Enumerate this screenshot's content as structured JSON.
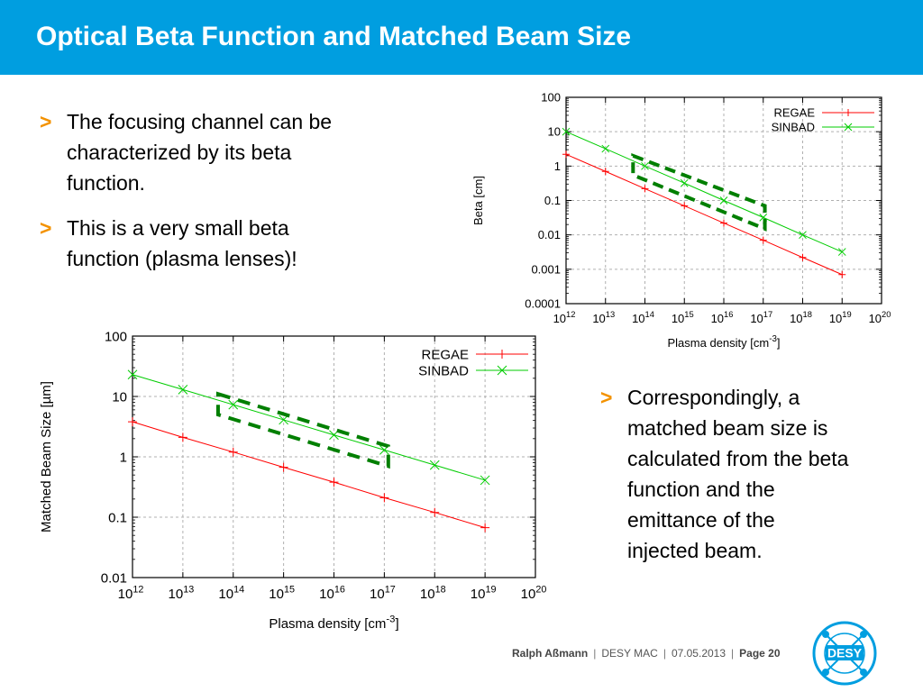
{
  "slide": {
    "title": "Optical Beta Function and Matched Beam Size",
    "bullets_top": [
      {
        "marker": ">",
        "text": "The focusing channel can be\ncharacterized by its beta\nfunction."
      },
      {
        "marker": ">",
        "text": "This is a very small beta\nfunction (plasma lenses)!"
      }
    ],
    "bullet_right": {
      "marker": ">",
      "text": "Correspondingly, a\nmatched beam size is\ncalculated from the beta\nfunction and the\nemittance of the\ninjected beam."
    }
  },
  "footer": {
    "author": "Ralph Aßmann",
    "event": "DESY MAC",
    "date": "07.05.2013",
    "page_label": "Page 20"
  },
  "logo": {
    "text": "DESY"
  },
  "colors": {
    "header": "#009ee0",
    "bullet": "#f39200",
    "regae": "#ff0000",
    "sinbad": "#00cc00",
    "highlight": "#007f00"
  },
  "chart_data": [
    {
      "type": "line",
      "title": "",
      "xlabel": "Plasma density [cm",
      "xlabel_sup": "-3",
      "xlabel_end": "]",
      "ylabel": "Beta [cm]",
      "log_x": true,
      "log_y": true,
      "xlim": [
        1000000000000.0,
        1e+20
      ],
      "ylim": [
        0.0001,
        100
      ],
      "x_ticks": [
        {
          "base": "10",
          "exp": "12"
        },
        {
          "base": "10",
          "exp": "13"
        },
        {
          "base": "10",
          "exp": "14"
        },
        {
          "base": "10",
          "exp": "15"
        },
        {
          "base": "10",
          "exp": "16"
        },
        {
          "base": "10",
          "exp": "17"
        },
        {
          "base": "10",
          "exp": "18"
        },
        {
          "base": "10",
          "exp": "19"
        },
        {
          "base": "10",
          "exp": "20"
        }
      ],
      "y_ticks": [
        "0.0001",
        "0.001",
        "0.01",
        "0.1",
        "1",
        "10",
        "100"
      ],
      "grid": true,
      "legend_position": "top-right",
      "x": [
        1000000000000.0,
        10000000000000.0,
        100000000000000.0,
        1000000000000000.0,
        1e+16,
        1e+17,
        1e+18,
        1e+19
      ],
      "series": [
        {
          "name": "REGAE",
          "values": [
            2.2,
            0.7,
            0.22,
            0.07,
            0.022,
            0.007,
            0.0022,
            0.0007
          ]
        },
        {
          "name": "SINBAD",
          "values": [
            10,
            3.2,
            1.0,
            0.32,
            0.1,
            0.032,
            0.01,
            0.0032
          ]
        }
      ],
      "highlight": {
        "x_range": [
          50000000000000.0,
          1.1e+17
        ],
        "y_range_low": [
          0.55,
          0.015
        ],
        "y_range_high": [
          2.0,
          0.07
        ]
      }
    },
    {
      "type": "line",
      "title": "",
      "xlabel": "Plasma density [cm",
      "xlabel_sup": "-3",
      "xlabel_end": "]",
      "ylabel": "Matched Beam Size [µm]",
      "log_x": true,
      "log_y": true,
      "xlim": [
        1000000000000.0,
        1e+20
      ],
      "ylim": [
        0.01,
        100
      ],
      "x_ticks": [
        {
          "base": "10",
          "exp": "12"
        },
        {
          "base": "10",
          "exp": "13"
        },
        {
          "base": "10",
          "exp": "14"
        },
        {
          "base": "10",
          "exp": "15"
        },
        {
          "base": "10",
          "exp": "16"
        },
        {
          "base": "10",
          "exp": "17"
        },
        {
          "base": "10",
          "exp": "18"
        },
        {
          "base": "10",
          "exp": "19"
        },
        {
          "base": "10",
          "exp": "20"
        }
      ],
      "y_ticks": [
        "0.01",
        "0.1",
        "1",
        "10",
        "100"
      ],
      "grid": true,
      "legend_position": "top-right",
      "x": [
        1000000000000.0,
        10000000000000.0,
        100000000000000.0,
        1000000000000000.0,
        1e+16,
        1e+17,
        1e+18,
        1e+19
      ],
      "series": [
        {
          "name": "REGAE",
          "values": [
            3.8,
            2.1,
            1.2,
            0.67,
            0.38,
            0.21,
            0.12,
            0.067
          ]
        },
        {
          "name": "SINBAD",
          "values": [
            23,
            13,
            7.3,
            4.1,
            2.3,
            1.3,
            0.73,
            0.41
          ]
        }
      ],
      "highlight": {
        "x_range": [
          50000000000000.0,
          1.2e+17
        ],
        "y_range_low": [
          5.0,
          0.7
        ],
        "y_range_high": [
          11.0,
          1.5
        ]
      }
    }
  ]
}
